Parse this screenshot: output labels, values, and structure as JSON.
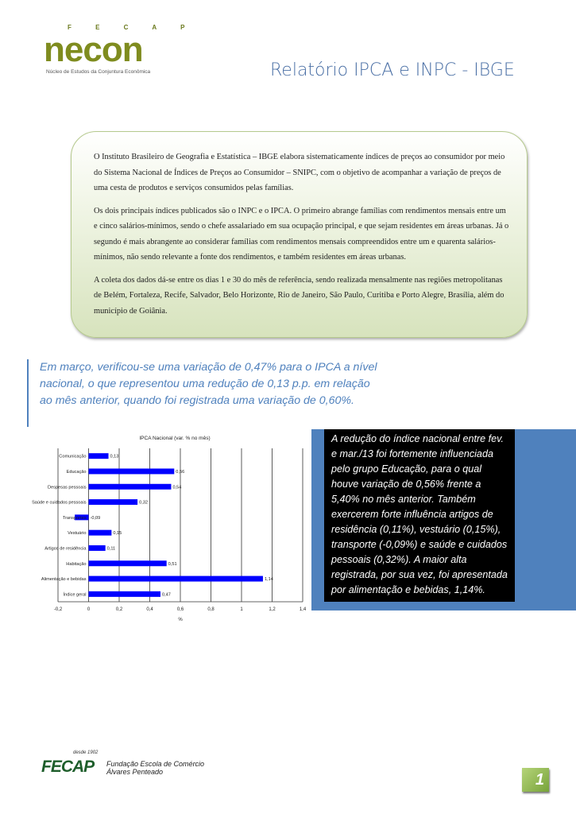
{
  "header": {
    "logo": {
      "top": "F E C A P",
      "name": "necon",
      "subtitle": "Núcleo de Estudos da Conjuntura Econômica"
    },
    "title": "Relatório IPCA e INPC - IBGE"
  },
  "intro": {
    "paragraphs": [
      "O Instituto Brasileiro de Geografia e Estatística – IBGE elabora sistematicamente índices de preços ao consumidor por meio do Sistema Nacional de Índices de Preços ao Consumidor – SNIPC, com o objetivo de acompanhar a variação de preços de uma cesta de produtos e serviços consumidos pelas famílias.",
      "Os dois principais índices publicados são o INPC e o IPCA. O primeiro abrange famílias com rendimentos mensais entre um e cinco salários-mínimos, sendo o chefe assalariado em sua ocupação principal, e que sejam residentes em áreas urbanas. Já o segundo é mais abrangente ao considerar famílias com rendimentos mensais compreendidos entre um e quarenta salários-mínimos, não sendo relevante a fonte dos rendimentos, e também residentes em áreas urbanas.",
      "A coleta dos dados dá-se entre os dias 1 e 30 do mês de referência, sendo realizada mensalmente nas regiões metropolitanas de Belém, Fortaleza, Recife, Salvador, Belo Horizonte, Rio de Janeiro, São Paulo, Curitiba e Porto Alegre, Brasília, além do município de Goiânia."
    ]
  },
  "lead": "Em março, verificou-se uma variação de 0,47% para o IPCA a nível nacional, o que representou uma redução de 0,13 p.p. em relação ao mês anterior, quando foi registrada uma variação de 0,60%.",
  "sidebar_note": "A redução do índice nacional entre fev. e mar./13 foi fortemente influenciada pelo grupo Educação, para o qual houve variação de 0,56% frente a 5,40% no mês anterior. Também exercerem forte influência artigos de residência (0,11%), vestuário (0,15%), transporte (-0,09%) e saúde e cuidados pessoais (0,32%). A maior alta registrada, por sua vez, foi apresentada por alimentação e bebidas, 1,14%.",
  "chart_data": {
    "type": "bar",
    "orientation": "horizontal",
    "title": "IPCA Nacional (var. % no mês)",
    "xlabel": "%",
    "ylabel": "",
    "categories": [
      "Comunicação",
      "Educação",
      "Despesas pessoais",
      "Saúde e cuidados pessoais",
      "Transportes",
      "Vestuário",
      "Artigos de residência",
      "Habitação",
      "Alimentação e bebidas",
      "Índice geral"
    ],
    "values": [
      0.13,
      0.56,
      0.54,
      0.32,
      -0.09,
      0.15,
      0.11,
      0.51,
      1.14,
      0.47
    ],
    "data_labels": [
      "0,13",
      "0,56",
      "0,54",
      "0,32",
      "-0,09",
      "0,15",
      "0,11",
      "0,51",
      "1,14",
      "0,47"
    ],
    "xlim": [
      -0.2,
      1.4
    ],
    "xticks": [
      -0.2,
      0,
      0.2,
      0.4,
      0.6,
      0.8,
      1,
      1.2,
      1.4
    ],
    "xtick_labels": [
      "-0,2",
      "0",
      "0,2",
      "0,4",
      "0,6",
      "0,8",
      "1",
      "1,2",
      "1,4"
    ],
    "grid": "vertical",
    "legend": "none",
    "bar_color": "#0000ff"
  },
  "footer": {
    "since": "desde 1902",
    "mark": "FECAP",
    "line1": "Fundação Escola de Comércio",
    "line2": "Álvares Penteado",
    "page_number": "1"
  },
  "colors": {
    "title": "#4a6fa5",
    "accent_blue": "#4f81bd",
    "green": "#7f8c1f"
  }
}
